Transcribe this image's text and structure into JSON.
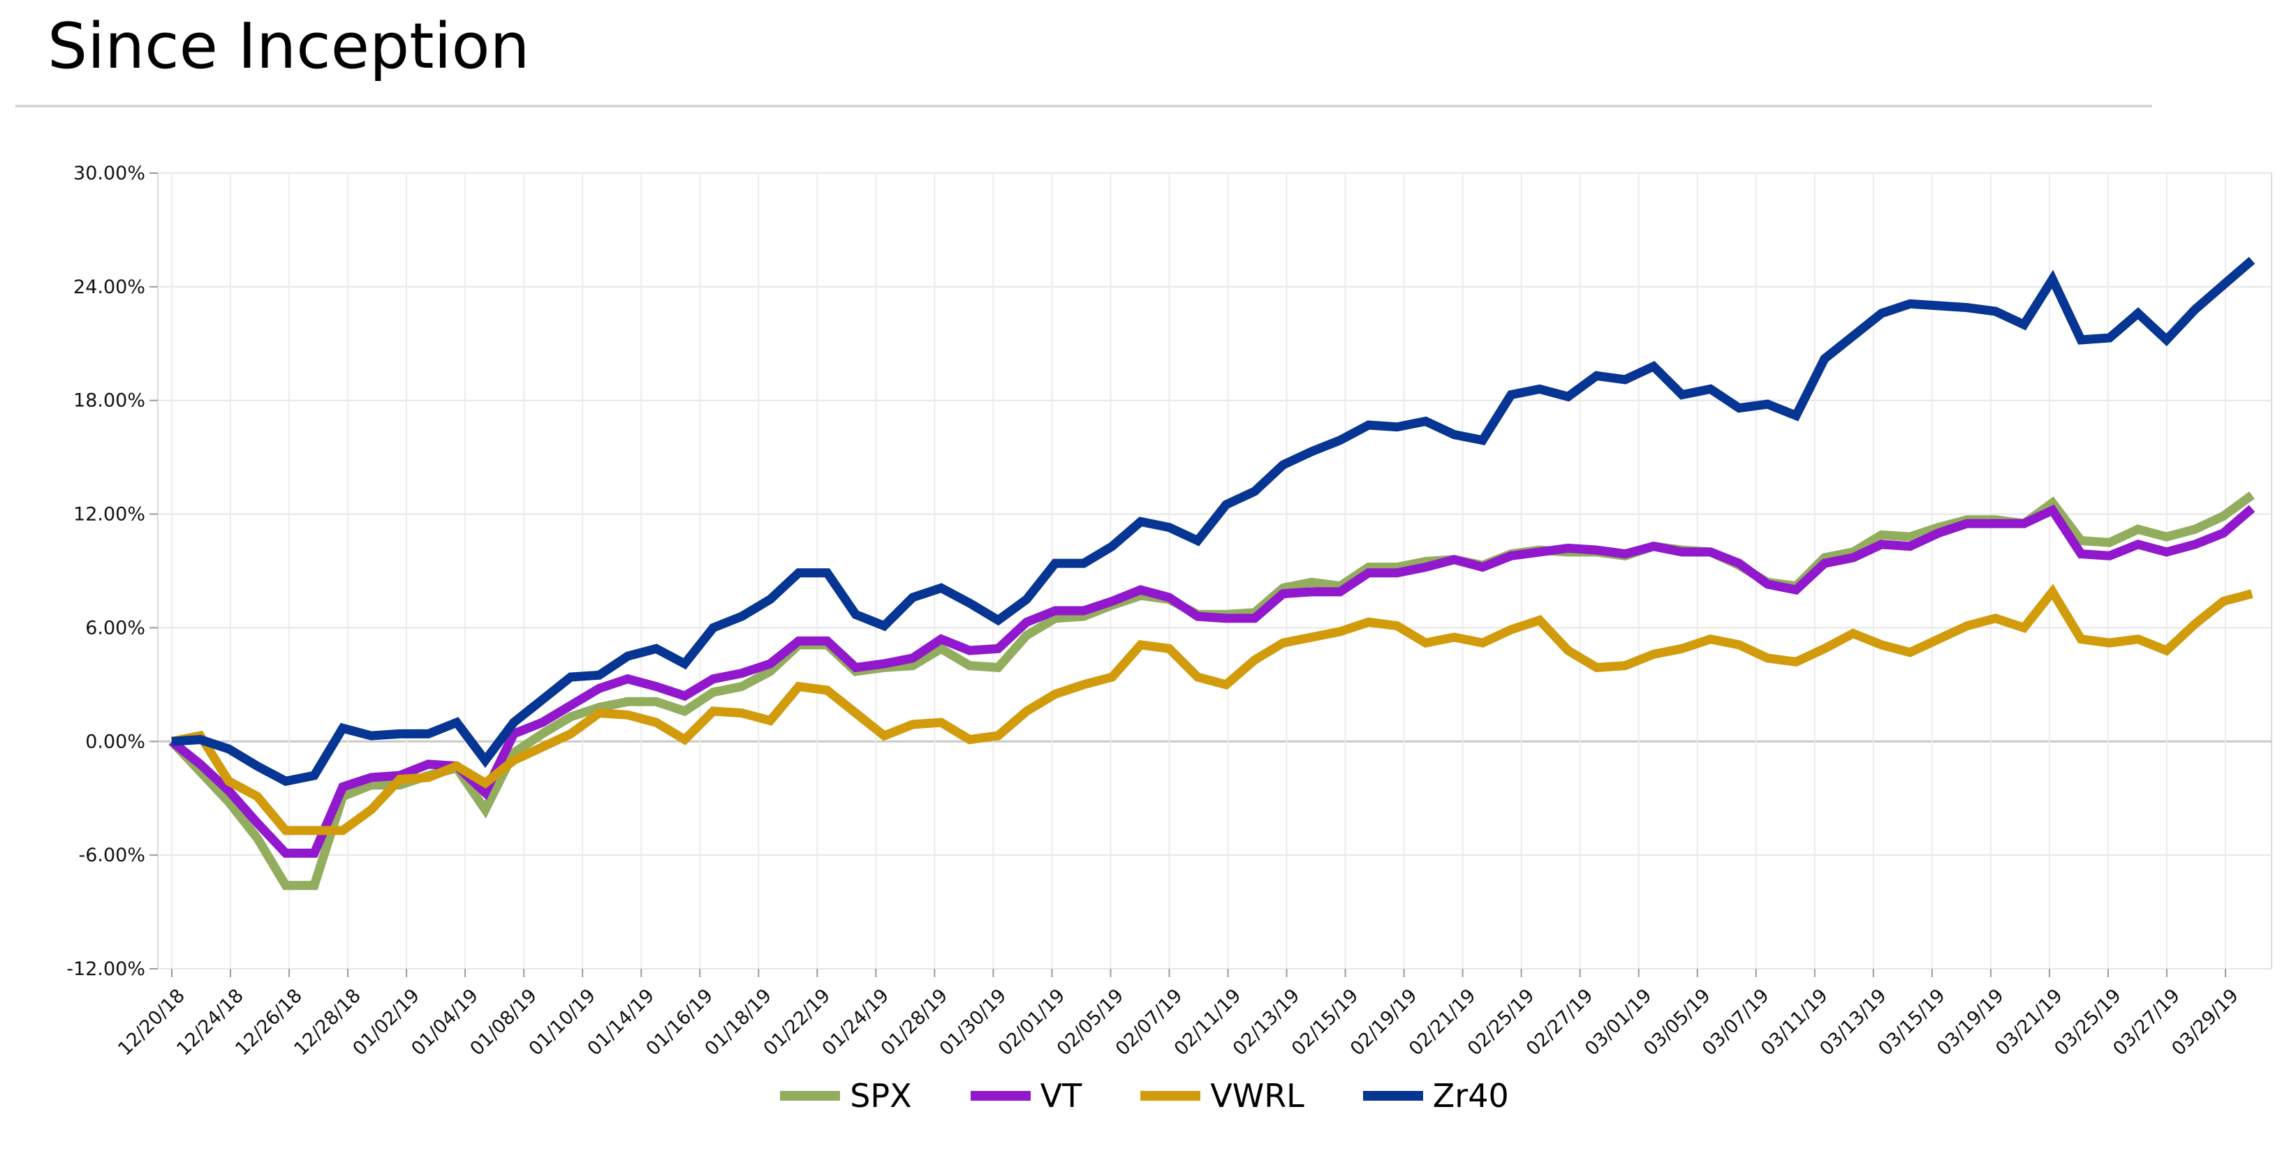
{
  "page": {
    "title": "Since Inception"
  },
  "chart_data": {
    "type": "line",
    "title": "Since Inception",
    "xlabel": "",
    "ylabel": "",
    "ylim": [
      -12,
      30
    ],
    "yticks": [
      "30.00%",
      "24.00%",
      "18.00%",
      "12.00%",
      "6.00%",
      "0.00%",
      "-6.00%",
      "-12.00%"
    ],
    "ytick_values": [
      30,
      24,
      18,
      12,
      6,
      0,
      -6,
      -12
    ],
    "grid": true,
    "legend_position": "bottom",
    "x_tick_labels": [
      "12/20/18",
      "12/24/18",
      "12/26/18",
      "12/28/18",
      "01/02/19",
      "01/04/19",
      "01/08/19",
      "01/10/19",
      "01/14/19",
      "01/16/19",
      "01/18/19",
      "01/22/19",
      "01/24/19",
      "01/28/19",
      "01/30/19",
      "02/01/19",
      "02/05/19",
      "02/07/19",
      "02/11/19",
      "02/13/19",
      "02/15/19",
      "02/19/19",
      "02/21/19",
      "02/25/19",
      "02/27/19",
      "03/01/19",
      "03/05/19",
      "03/07/19",
      "03/11/19",
      "03/13/19",
      "03/15/19",
      "03/19/19",
      "03/21/19",
      "03/25/19",
      "03/27/19",
      "03/29/19"
    ],
    "series": [
      {
        "name": "SPX",
        "color": "#93ad5e",
        "values": [
          0,
          -1.6,
          -3.2,
          -5.1,
          -7.6,
          -7.6,
          -2.9,
          -2.3,
          -2.3,
          -1.8,
          -1.4,
          -3.6,
          -0.6,
          0.4,
          1.3,
          1.8,
          2.1,
          2.1,
          1.6,
          2.6,
          2.9,
          3.7,
          5.1,
          5.1,
          3.7,
          3.9,
          4.0,
          4.9,
          4.0,
          3.9,
          5.6,
          6.5,
          6.6,
          7.2,
          7.7,
          7.5,
          6.7,
          6.7,
          6.8,
          8.1,
          8.4,
          8.2,
          9.2,
          9.2,
          9.5,
          9.6,
          9.3,
          9.9,
          10.1,
          10.0,
          10.0,
          9.8,
          10.3,
          10.1,
          10.0,
          9.3,
          8.4,
          8.2,
          9.7,
          10.0,
          10.9,
          10.8,
          11.3,
          11.7,
          11.7,
          11.5,
          12.6,
          10.6,
          10.5,
          11.2,
          10.8,
          11.2,
          11.9,
          13.0
        ]
      },
      {
        "name": "VT",
        "color": "#9118cc",
        "values": [
          0,
          -1.2,
          -2.6,
          -4.3,
          -5.9,
          -5.9,
          -2.4,
          -1.9,
          -1.8,
          -1.2,
          -1.3,
          -2.7,
          0.4,
          1.0,
          1.9,
          2.8,
          3.3,
          2.9,
          2.4,
          3.3,
          3.6,
          4.1,
          5.3,
          5.3,
          3.9,
          4.1,
          4.4,
          5.4,
          4.8,
          4.9,
          6.3,
          6.9,
          6.9,
          7.4,
          8.0,
          7.6,
          6.6,
          6.5,
          6.5,
          7.8,
          7.9,
          7.9,
          8.9,
          8.9,
          9.2,
          9.6,
          9.2,
          9.8,
          10.0,
          10.2,
          10.1,
          9.9,
          10.3,
          10.0,
          10.0,
          9.4,
          8.3,
          8.0,
          9.4,
          9.7,
          10.4,
          10.3,
          11.0,
          11.5,
          11.5,
          11.5,
          12.2,
          9.9,
          9.8,
          10.4,
          10.0,
          10.4,
          11.0,
          12.3
        ]
      },
      {
        "name": "VWRL",
        "color": "#d29b0b",
        "values": [
          0,
          0.3,
          -2.1,
          -2.9,
          -4.7,
          -4.7,
          -4.7,
          -3.6,
          -2.0,
          -1.9,
          -1.3,
          -2.2,
          -1.0,
          -0.3,
          0.4,
          1.5,
          1.4,
          1.0,
          0.1,
          1.6,
          1.5,
          1.1,
          2.9,
          2.7,
          1.5,
          0.3,
          0.9,
          1.0,
          0.1,
          0.3,
          1.6,
          2.5,
          3.0,
          3.4,
          5.1,
          4.9,
          3.4,
          3.0,
          4.3,
          5.2,
          5.5,
          5.8,
          6.3,
          6.1,
          5.2,
          5.5,
          5.2,
          5.9,
          6.4,
          4.8,
          3.9,
          4.0,
          4.6,
          4.9,
          5.4,
          5.1,
          4.4,
          4.2,
          4.9,
          5.7,
          5.1,
          4.7,
          5.4,
          6.1,
          6.5,
          6.0,
          7.9,
          5.4,
          5.2,
          5.4,
          4.8,
          6.2,
          7.4,
          7.8
        ]
      },
      {
        "name": "Zr40",
        "color": "#073594",
        "values": [
          0,
          0.1,
          -0.4,
          -1.3,
          -2.1,
          -1.8,
          0.7,
          0.3,
          0.4,
          0.4,
          1.0,
          -1.0,
          1.0,
          2.2,
          3.4,
          3.5,
          4.5,
          4.9,
          4.1,
          6.0,
          6.6,
          7.5,
          8.9,
          8.9,
          6.7,
          6.1,
          7.6,
          8.1,
          7.3,
          6.4,
          7.5,
          9.4,
          9.4,
          10.3,
          11.6,
          11.3,
          10.6,
          12.5,
          13.2,
          14.6,
          15.3,
          15.9,
          16.7,
          16.6,
          16.9,
          16.2,
          15.9,
          18.3,
          18.6,
          18.2,
          19.3,
          19.1,
          19.8,
          18.3,
          18.6,
          17.6,
          17.8,
          17.2,
          20.2,
          21.4,
          22.6,
          23.1,
          23.0,
          22.9,
          22.7,
          22.0,
          24.4,
          21.2,
          21.3,
          22.6,
          21.2,
          22.8,
          24.1,
          25.4
        ]
      }
    ]
  }
}
